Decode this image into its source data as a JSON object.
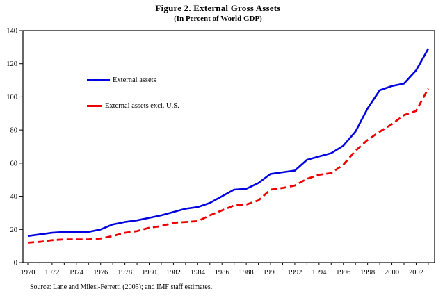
{
  "chart_data": {
    "type": "line",
    "title": "Figure 2. External Gross Assets",
    "subtitle": "(In Percent of World GDP)",
    "xlabel": "",
    "ylabel": "",
    "ylim": [
      0,
      140
    ],
    "ytick_step": 20,
    "xtick_label_step": 2,
    "grid": "off",
    "legend_position": "inside-upper-left",
    "x": [
      1970,
      1971,
      1972,
      1973,
      1974,
      1975,
      1976,
      1977,
      1978,
      1979,
      1980,
      1981,
      1982,
      1983,
      1984,
      1985,
      1986,
      1987,
      1988,
      1989,
      1990,
      1991,
      1992,
      1993,
      1994,
      1995,
      1996,
      1997,
      1998,
      1999,
      2000,
      2001,
      2002,
      2003
    ],
    "series": [
      {
        "name": "External assets",
        "color": "#0000e0",
        "style": "solid",
        "values": [
          16,
          17,
          18,
          18.5,
          18.5,
          18.5,
          20,
          23,
          24.5,
          25.5,
          27,
          28.5,
          30.5,
          32.5,
          33.5,
          36,
          40,
          44,
          44.5,
          48,
          53.5,
          54.5,
          55.5,
          62,
          64,
          66,
          70.5,
          79,
          93,
          104,
          106.5,
          108,
          116,
          129
        ]
      },
      {
        "name": "External assets excl. U.S.",
        "color": "#ee0000",
        "style": "dashed",
        "values": [
          12,
          12.5,
          13.5,
          14,
          14,
          14,
          14.5,
          16,
          18,
          19,
          21,
          22,
          24,
          24.5,
          25,
          28.5,
          31.5,
          34.5,
          35,
          37.5,
          44,
          45,
          46.5,
          50.5,
          53,
          54,
          59,
          67.5,
          74,
          79,
          83.5,
          89,
          91.5,
          105
        ]
      }
    ],
    "source": "Source: Lane and Milesi-Ferretti (2005); and IMF staff estimates.",
    "axis_color": "#000000"
  }
}
